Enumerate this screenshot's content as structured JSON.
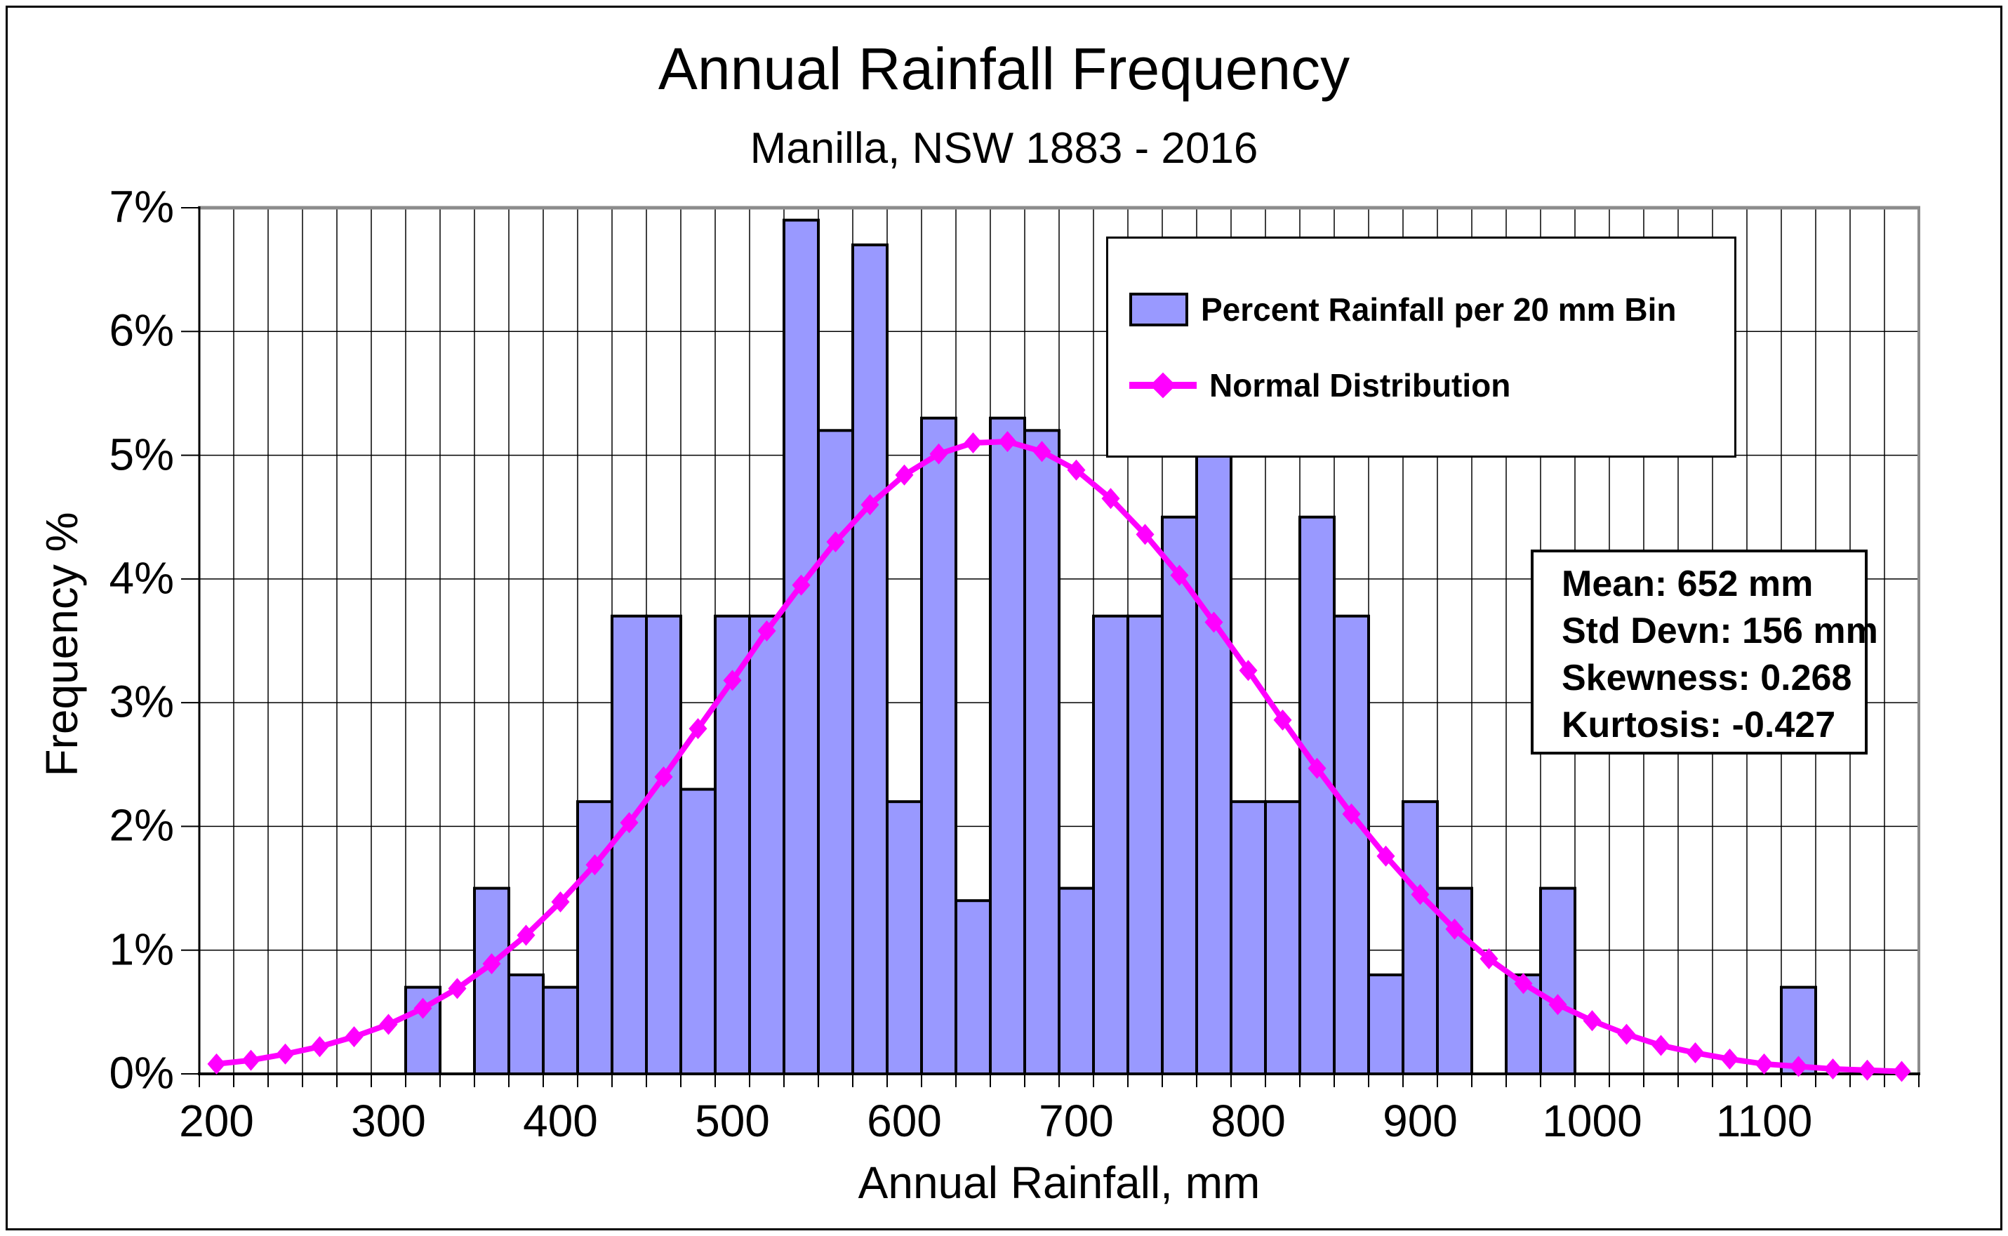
{
  "title": "Annual Rainfall Frequency",
  "subtitle": "Manilla, NSW 1883 - 2016",
  "chart_data": {
    "type": "bar",
    "title": "Annual Rainfall Frequency",
    "subtitle": "Manilla, NSW 1883 - 2016",
    "xlabel": "Annual Rainfall, mm",
    "ylabel": "Frequency %",
    "ylim": [
      0,
      7
    ],
    "y_ticks": [
      "0%",
      "1%",
      "2%",
      "3%",
      "4%",
      "5%",
      "6%",
      "7%"
    ],
    "x_tick_values": [
      200,
      300,
      400,
      500,
      600,
      700,
      800,
      900,
      1000,
      1100
    ],
    "grid": "both",
    "legend_position": "top-right",
    "bin_width_mm": 20,
    "categories": [
      200,
      220,
      240,
      260,
      280,
      300,
      320,
      340,
      360,
      380,
      400,
      420,
      440,
      460,
      480,
      500,
      520,
      540,
      560,
      580,
      600,
      620,
      640,
      660,
      680,
      700,
      720,
      740,
      760,
      780,
      800,
      820,
      840,
      860,
      880,
      900,
      920,
      940,
      960,
      980,
      1000,
      1020,
      1040,
      1060,
      1080,
      1100,
      1120,
      1140,
      1160,
      1180
    ],
    "series": [
      {
        "name": "Percent Rainfall per 20 mm Bin",
        "type": "bar",
        "color": "#9999FF",
        "values": [
          0,
          0,
          0,
          0,
          0,
          0,
          0.7,
          0,
          1.5,
          0.8,
          0.7,
          2.2,
          3.7,
          3.7,
          2.3,
          3.7,
          3.7,
          6.9,
          5.2,
          6.7,
          2.2,
          5.3,
          1.4,
          5.3,
          5.2,
          1.5,
          3.7,
          3.7,
          4.5,
          5.3,
          2.2,
          2.2,
          4.5,
          3.7,
          0.8,
          2.2,
          1.5,
          0,
          0.8,
          1.5,
          0,
          0,
          0,
          0,
          0,
          0,
          0.7,
          0,
          0,
          0
        ]
      },
      {
        "name": "Normal Distribution",
        "type": "line",
        "color": "#FF00FF",
        "marker": "diamond",
        "values": [
          0.08,
          0.11,
          0.16,
          0.22,
          0.3,
          0.4,
          0.53,
          0.69,
          0.89,
          1.12,
          1.39,
          1.69,
          2.03,
          2.4,
          2.79,
          3.18,
          3.58,
          3.95,
          4.3,
          4.6,
          4.84,
          5.01,
          5.1,
          5.11,
          5.03,
          4.88,
          4.65,
          4.36,
          4.03,
          3.65,
          3.26,
          2.86,
          2.47,
          2.1,
          1.76,
          1.45,
          1.17,
          0.93,
          0.73,
          0.56,
          0.43,
          0.32,
          0.23,
          0.17,
          0.12,
          0.08,
          0.06,
          0.04,
          0.03,
          0.02
        ]
      }
    ],
    "normal_params": {
      "mean_mm": 652,
      "std_devn_mm": 156
    }
  },
  "legend": {
    "items": [
      {
        "label": "Percent Rainfall per 20 mm Bin",
        "swatch": "bar-swatch"
      },
      {
        "label": "Normal Distribution",
        "swatch": "line-diamond-swatch"
      }
    ]
  },
  "stats_box": {
    "lines": [
      "Mean: 652 mm",
      "Std Devn: 156 mm",
      "Skewness: 0.268",
      "Kurtosis: -0.427"
    ]
  },
  "colors": {
    "bar_fill": "#9999FF",
    "bar_border": "#000000",
    "line": "#FF00FF",
    "plot_border_gray": "#8C8C8C",
    "grid": "#000000",
    "background": "#FFFFFF"
  }
}
